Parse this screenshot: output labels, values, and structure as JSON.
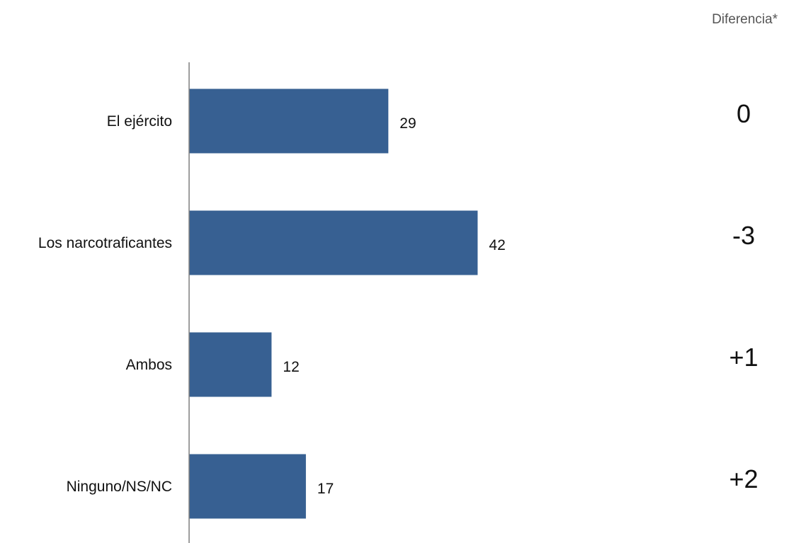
{
  "chart_data": {
    "type": "bar",
    "orientation": "horizontal",
    "categories": [
      "El ejército",
      "Los narcotraficantes",
      "Ambos",
      "Ninguno/NS/NC"
    ],
    "values": [
      29,
      42,
      12,
      17
    ],
    "difference_header": "Diferencia*",
    "differences": [
      "0",
      "-3",
      "+1",
      "+2"
    ],
    "xlim": [
      0,
      50
    ],
    "grid": false,
    "legend": "none",
    "bar_color": "#376092"
  }
}
